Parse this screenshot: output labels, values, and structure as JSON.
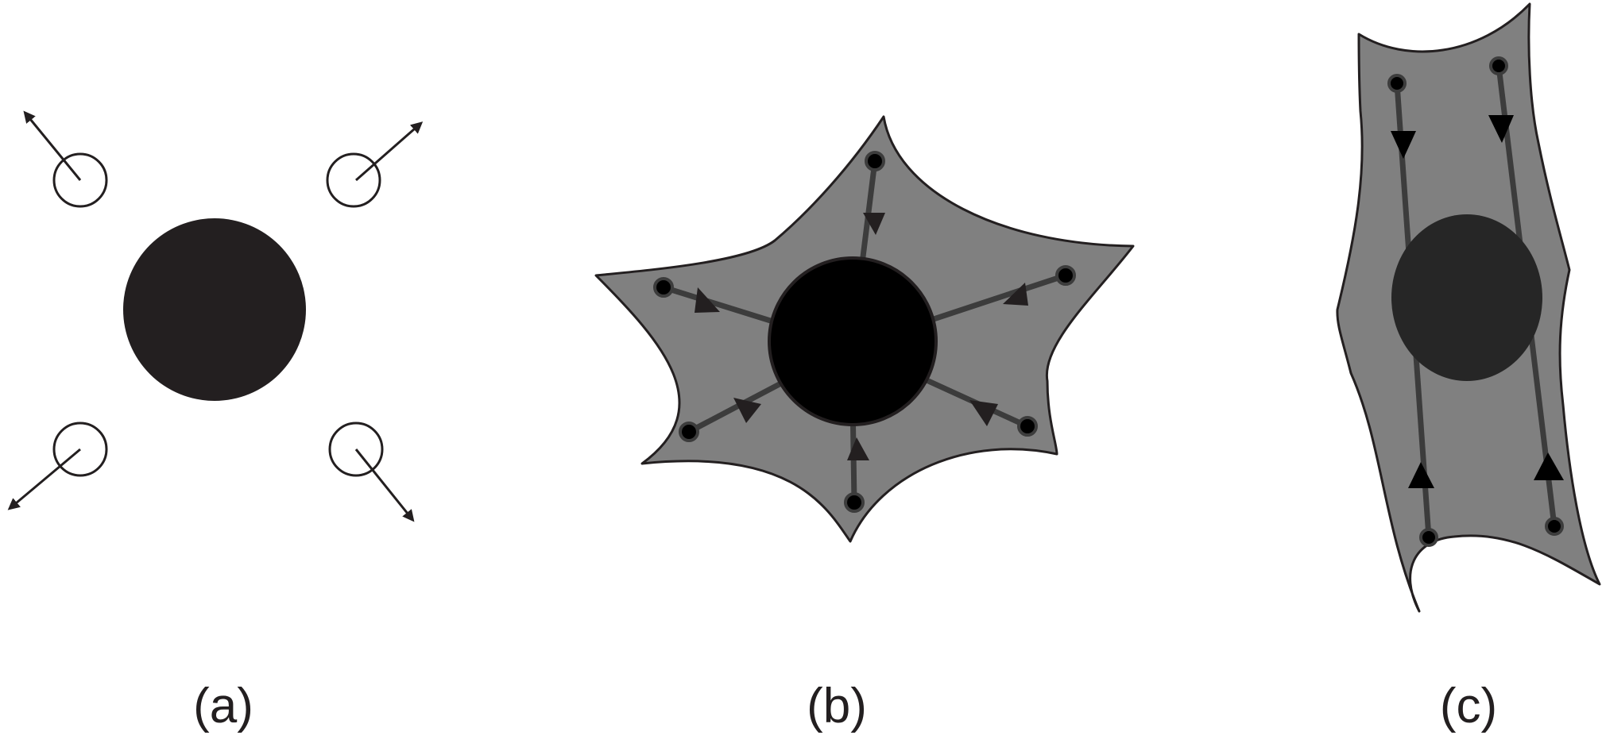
{
  "panels": [
    {
      "id": "a",
      "label": "(a)"
    },
    {
      "id": "b",
      "label": "(b)"
    },
    {
      "id": "c",
      "label": "(c)"
    }
  ],
  "colors": {
    "nucleus_round": "#231f20",
    "nucleus_b": "#000000",
    "nucleus_c": "#262626",
    "cell_body": "#808080",
    "cell_outline": "#231f20",
    "stress_fiber": "#3c3c3c",
    "adhesion_outline": "#231f20",
    "arrow": "#231f20"
  },
  "icons": {
    "adhesion": "circle",
    "force": "arrowhead"
  }
}
